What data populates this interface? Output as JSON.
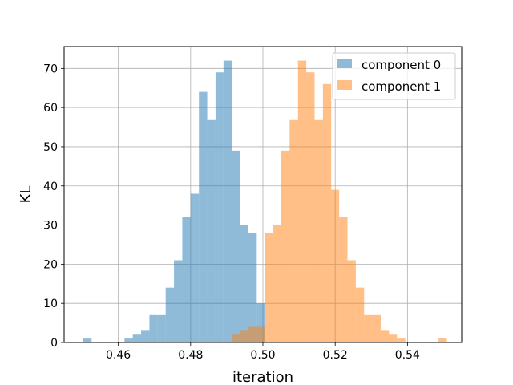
{
  "chart_data": {
    "type": "histogram",
    "title": "",
    "xlabel": "iteration",
    "ylabel": "KL",
    "xlim": [
      0.445,
      0.555
    ],
    "ylim": [
      0,
      75.6
    ],
    "grid": true,
    "legend_position": "top-right",
    "xticks": [
      0.46,
      0.48,
      0.5,
      0.52,
      0.54
    ],
    "xtick_labels": [
      "0.46",
      "0.48",
      "0.50",
      "0.52",
      "0.54"
    ],
    "yticks": [
      0,
      10,
      20,
      30,
      40,
      50,
      60,
      70
    ],
    "ytick_labels": [
      "0",
      "10",
      "20",
      "30",
      "40",
      "50",
      "60",
      "70"
    ],
    "series": [
      {
        "name": "component 0",
        "color": "#1f77b4",
        "alpha": 0.5,
        "bins": [
          [
            0.4503,
            0.4526,
            1
          ],
          [
            0.4526,
            0.4549,
            0
          ],
          [
            0.4549,
            0.4571,
            0
          ],
          [
            0.4571,
            0.4594,
            0
          ],
          [
            0.4594,
            0.4617,
            0
          ],
          [
            0.4617,
            0.464,
            1
          ],
          [
            0.464,
            0.4663,
            2
          ],
          [
            0.4663,
            0.4686,
            3
          ],
          [
            0.4686,
            0.4709,
            7
          ],
          [
            0.4709,
            0.4731,
            7
          ],
          [
            0.4731,
            0.4754,
            14
          ],
          [
            0.4754,
            0.4777,
            21
          ],
          [
            0.4777,
            0.48,
            32
          ],
          [
            0.48,
            0.4823,
            38
          ],
          [
            0.4823,
            0.4846,
            64
          ],
          [
            0.4846,
            0.4869,
            57
          ],
          [
            0.4869,
            0.4891,
            69
          ],
          [
            0.4891,
            0.4914,
            72
          ],
          [
            0.4914,
            0.4937,
            49
          ],
          [
            0.4937,
            0.496,
            30
          ],
          [
            0.496,
            0.4983,
            28
          ],
          [
            0.4983,
            0.5006,
            10
          ]
        ]
      },
      {
        "name": "component 1",
        "color": "#ff7f0e",
        "alpha": 0.5,
        "bins": [
          [
            0.4914,
            0.4937,
            2
          ],
          [
            0.4937,
            0.496,
            3
          ],
          [
            0.496,
            0.4983,
            4
          ],
          [
            0.4983,
            0.5006,
            4
          ],
          [
            0.5006,
            0.5029,
            28
          ],
          [
            0.5029,
            0.5051,
            30
          ],
          [
            0.5051,
            0.5074,
            49
          ],
          [
            0.5074,
            0.5097,
            57
          ],
          [
            0.5097,
            0.512,
            72
          ],
          [
            0.512,
            0.5143,
            69
          ],
          [
            0.5143,
            0.5166,
            57
          ],
          [
            0.5166,
            0.5189,
            66
          ],
          [
            0.5189,
            0.5211,
            39
          ],
          [
            0.5211,
            0.5234,
            32
          ],
          [
            0.5234,
            0.5257,
            21
          ],
          [
            0.5257,
            0.528,
            14
          ],
          [
            0.528,
            0.5303,
            7
          ],
          [
            0.5303,
            0.5326,
            7
          ],
          [
            0.5326,
            0.5349,
            3
          ],
          [
            0.5349,
            0.5371,
            2
          ],
          [
            0.5371,
            0.5394,
            1
          ],
          [
            0.5394,
            0.5417,
            0
          ],
          [
            0.5417,
            0.544,
            0
          ],
          [
            0.544,
            0.5463,
            0
          ],
          [
            0.5463,
            0.5486,
            0
          ],
          [
            0.5486,
            0.5509,
            1
          ]
        ]
      }
    ]
  }
}
